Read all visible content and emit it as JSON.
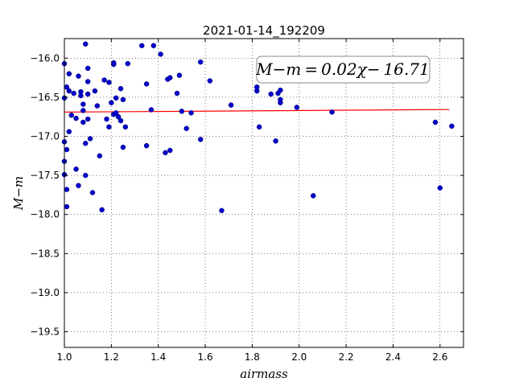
{
  "chart_data": {
    "type": "scatter",
    "title": "2021-01-14_192209",
    "xlabel": "airmass",
    "ylabel": "M−m",
    "xlim": [
      1.0,
      2.7
    ],
    "ylim": [
      -19.7,
      -15.75
    ],
    "xticks": [
      "1.0",
      "1.2",
      "1.4",
      "1.6",
      "1.8",
      "2.0",
      "2.2",
      "2.4",
      "2.6"
    ],
    "yticks": [
      "-16.0",
      "-16.5",
      "-17.0",
      "-17.5",
      "-18.0",
      "-18.5",
      "-19.0",
      "-19.5"
    ],
    "grid": true,
    "annotation": "M−m = 0.02χ− 16.71",
    "fit": {
      "slope": 0.02,
      "intercept": -16.71,
      "x_range": [
        1.0,
        2.64
      ],
      "color": "#ff0000"
    },
    "marker_color": "#0000cc",
    "points": [
      [
        1.0,
        -16.07
      ],
      [
        1.0,
        -16.51
      ],
      [
        1.0,
        -17.07
      ],
      [
        1.0,
        -17.32
      ],
      [
        1.0,
        -17.49
      ],
      [
        1.01,
        -16.37
      ],
      [
        1.01,
        -17.17
      ],
      [
        1.01,
        -17.68
      ],
      [
        1.01,
        -17.9
      ],
      [
        1.02,
        -16.94
      ],
      [
        1.02,
        -16.2
      ],
      [
        1.02,
        -16.42
      ],
      [
        1.03,
        -16.73
      ],
      [
        1.04,
        -16.45
      ],
      [
        1.05,
        -17.42
      ],
      [
        1.05,
        -16.77
      ],
      [
        1.06,
        -16.23
      ],
      [
        1.06,
        -17.63
      ],
      [
        1.07,
        -16.43
      ],
      [
        1.07,
        -16.48
      ],
      [
        1.08,
        -16.59
      ],
      [
        1.08,
        -16.67
      ],
      [
        1.08,
        -16.82
      ],
      [
        1.09,
        -15.82
      ],
      [
        1.09,
        -17.09
      ],
      [
        1.09,
        -17.5
      ],
      [
        1.1,
        -16.13
      ],
      [
        1.1,
        -16.3
      ],
      [
        1.1,
        -16.46
      ],
      [
        1.1,
        -16.78
      ],
      [
        1.11,
        -17.03
      ],
      [
        1.12,
        -17.72
      ],
      [
        1.13,
        -16.42
      ],
      [
        1.14,
        -16.61
      ],
      [
        1.15,
        -17.25
      ],
      [
        1.16,
        -17.94
      ],
      [
        1.17,
        -16.28
      ],
      [
        1.18,
        -16.78
      ],
      [
        1.19,
        -16.88
      ],
      [
        1.19,
        -16.31
      ],
      [
        1.2,
        -16.57
      ],
      [
        1.21,
        -16.08
      ],
      [
        1.21,
        -16.06
      ],
      [
        1.21,
        -16.72
      ],
      [
        1.22,
        -16.51
      ],
      [
        1.22,
        -16.7
      ],
      [
        1.23,
        -16.75
      ],
      [
        1.24,
        -16.8
      ],
      [
        1.24,
        -16.39
      ],
      [
        1.25,
        -16.53
      ],
      [
        1.25,
        -17.14
      ],
      [
        1.26,
        -16.88
      ],
      [
        1.27,
        -16.07
      ],
      [
        1.33,
        -15.84
      ],
      [
        1.35,
        -16.33
      ],
      [
        1.35,
        -17.12
      ],
      [
        1.37,
        -16.66
      ],
      [
        1.38,
        -15.84
      ],
      [
        1.41,
        -15.95
      ],
      [
        1.43,
        -17.21
      ],
      [
        1.44,
        -16.27
      ],
      [
        1.45,
        -16.25
      ],
      [
        1.45,
        -17.18
      ],
      [
        1.48,
        -16.45
      ],
      [
        1.49,
        -16.22
      ],
      [
        1.5,
        -16.68
      ],
      [
        1.52,
        -16.9
      ],
      [
        1.54,
        -16.7
      ],
      [
        1.58,
        -16.05
      ],
      [
        1.58,
        -17.04
      ],
      [
        1.62,
        -16.29
      ],
      [
        1.67,
        -17.95
      ],
      [
        1.71,
        -16.6
      ],
      [
        1.82,
        -16.37
      ],
      [
        1.82,
        -16.42
      ],
      [
        1.83,
        -16.88
      ],
      [
        1.88,
        -16.46
      ],
      [
        1.9,
        -17.06
      ],
      [
        1.91,
        -16.45
      ],
      [
        1.92,
        -16.41
      ],
      [
        1.92,
        -16.53
      ],
      [
        1.92,
        -16.57
      ],
      [
        1.99,
        -16.63
      ],
      [
        2.06,
        -17.76
      ],
      [
        2.14,
        -16.69
      ],
      [
        2.58,
        -16.82
      ],
      [
        2.6,
        -17.66
      ],
      [
        2.65,
        -16.87
      ]
    ]
  }
}
